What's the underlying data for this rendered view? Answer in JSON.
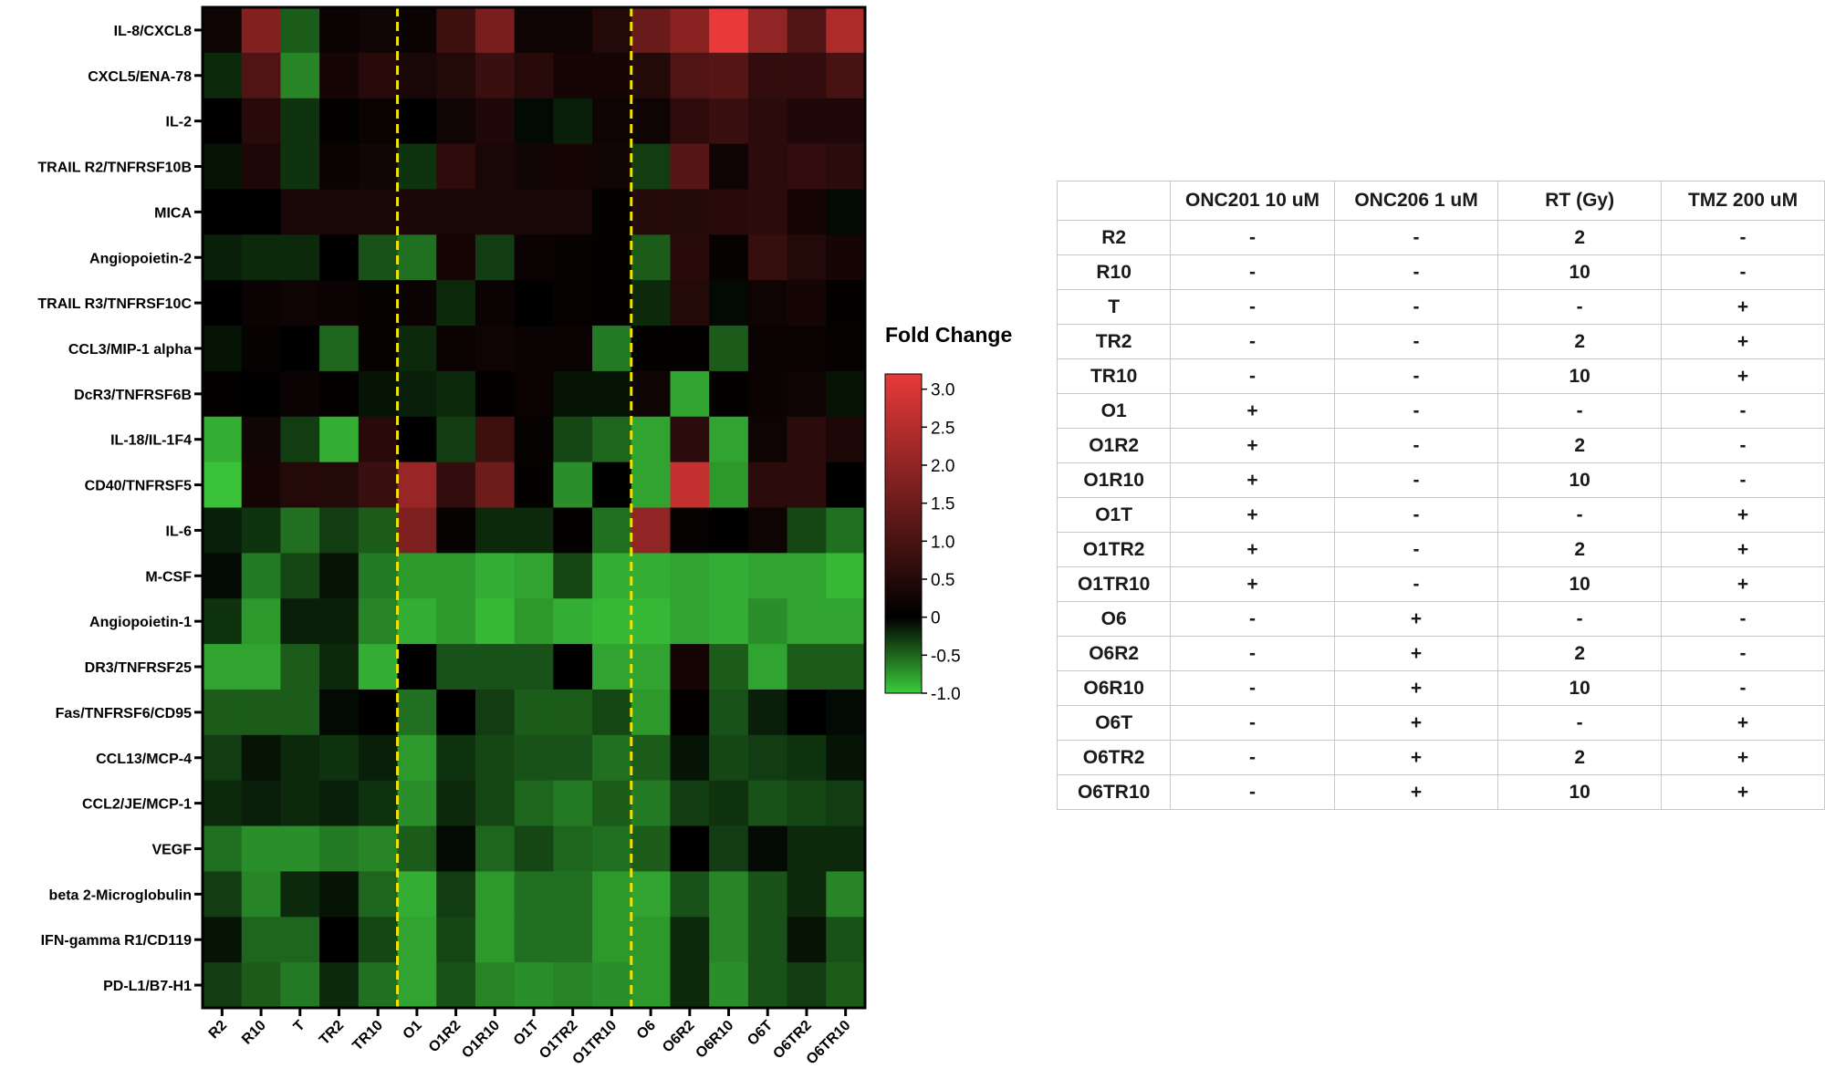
{
  "chart_data": {
    "type": "heatmap",
    "x_labels": [
      "R2",
      "R10",
      "T",
      "TR2",
      "TR10",
      "O1",
      "O1R2",
      "O1R10",
      "O1T",
      "O1TR2",
      "O1TR10",
      "O6",
      "O6R2",
      "O6R10",
      "O6T",
      "O6TR2",
      "O6TR10"
    ],
    "y_labels": [
      "IL-8/CXCL8",
      "CXCL5/ENA-78",
      "IL-2",
      "TRAIL R2/TNFRSF10B",
      "MICA",
      "Angiopoietin-2",
      "TRAIL R3/TNFRSF10C",
      "CCL3/MIP-1 alpha",
      "DcR3/TNFRSF6B",
      "IL-18/IL-1F4",
      "CD40/TNFRSF5",
      "IL-6",
      "M-CSF",
      "Angiopoietin-1",
      "DR3/TNFRSF25",
      "Fas/TNFRSF6/CD95",
      "CCL13/MCP-4",
      "CCL2/JE/MCP-1",
      "VEGF",
      "beta 2-Microglobulin",
      "IFN-gamma R1/CD119",
      "PD-L1/B7-H1"
    ],
    "values": [
      [
        0.2,
        1.8,
        -0.45,
        0.15,
        0.25,
        0.15,
        0.85,
        1.65,
        0.2,
        0.2,
        0.5,
        1.45,
        1.9,
        3.2,
        2.0,
        1.1,
        2.4
      ],
      [
        -0.2,
        1.1,
        -0.65,
        0.3,
        0.55,
        0.35,
        0.5,
        0.8,
        0.55,
        0.3,
        0.3,
        0.5,
        1.1,
        1.2,
        0.7,
        0.7,
        1.0
      ],
      [
        0.0,
        0.55,
        -0.25,
        0.05,
        0.15,
        0.0,
        0.25,
        0.45,
        -0.05,
        -0.15,
        0.2,
        0.2,
        0.65,
        0.8,
        0.6,
        0.45,
        0.45
      ],
      [
        -0.1,
        0.4,
        -0.25,
        0.15,
        0.25,
        -0.25,
        0.65,
        0.35,
        0.25,
        0.3,
        0.25,
        -0.3,
        1.2,
        0.2,
        0.6,
        0.7,
        0.6
      ],
      [
        0.0,
        0.0,
        0.35,
        0.35,
        0.35,
        0.35,
        0.35,
        0.35,
        0.35,
        0.35,
        0.05,
        0.5,
        0.5,
        0.55,
        0.6,
        0.3,
        -0.05
      ],
      [
        -0.15,
        -0.2,
        -0.2,
        0.0,
        -0.4,
        -0.55,
        0.3,
        -0.3,
        0.15,
        0.1,
        0.05,
        -0.45,
        0.55,
        0.1,
        0.75,
        0.5,
        0.3
      ],
      [
        0.0,
        0.15,
        0.2,
        0.15,
        0.1,
        0.15,
        -0.2,
        0.15,
        0.0,
        0.1,
        0.05,
        -0.2,
        0.5,
        -0.05,
        0.2,
        0.3,
        0.05
      ],
      [
        -0.1,
        0.1,
        0.0,
        -0.5,
        0.1,
        -0.2,
        0.15,
        0.2,
        0.15,
        0.15,
        -0.6,
        0.05,
        0.05,
        -0.45,
        0.15,
        0.15,
        0.1
      ],
      [
        0.05,
        0.0,
        0.15,
        0.05,
        -0.1,
        -0.15,
        -0.2,
        0.05,
        0.15,
        -0.1,
        -0.1,
        0.2,
        -0.8,
        0.05,
        0.15,
        0.2,
        -0.1
      ],
      [
        -0.85,
        0.25,
        -0.3,
        -0.85,
        0.55,
        0.0,
        -0.3,
        0.85,
        0.1,
        -0.35,
        -0.5,
        -0.8,
        0.6,
        -0.8,
        0.2,
        0.6,
        0.4
      ],
      [
        -0.95,
        0.3,
        0.5,
        0.5,
        0.8,
        2.1,
        0.7,
        1.5,
        0.05,
        -0.7,
        0.0,
        -0.8,
        2.7,
        -0.75,
        0.6,
        0.6,
        0.0
      ],
      [
        -0.15,
        -0.25,
        -0.55,
        -0.3,
        -0.45,
        1.75,
        0.1,
        -0.2,
        -0.2,
        0.05,
        -0.55,
        2.0,
        0.1,
        0.0,
        0.2,
        -0.35,
        -0.55
      ],
      [
        -0.05,
        -0.6,
        -0.35,
        -0.1,
        -0.6,
        -0.75,
        -0.75,
        -0.85,
        -0.8,
        -0.35,
        -0.85,
        -0.85,
        -0.8,
        -0.85,
        -0.8,
        -0.8,
        -0.9
      ],
      [
        -0.25,
        -0.75,
        -0.15,
        -0.15,
        -0.65,
        -0.85,
        -0.75,
        -0.9,
        -0.75,
        -0.85,
        -0.9,
        -0.9,
        -0.8,
        -0.85,
        -0.7,
        -0.8,
        -0.8
      ],
      [
        -0.8,
        -0.8,
        -0.45,
        -0.2,
        -0.85,
        0.0,
        -0.4,
        -0.4,
        -0.4,
        0.0,
        -0.8,
        -0.8,
        0.3,
        -0.45,
        -0.8,
        -0.45,
        -0.45
      ],
      [
        -0.45,
        -0.45,
        -0.45,
        -0.05,
        0.0,
        -0.55,
        0.0,
        -0.3,
        -0.45,
        -0.45,
        -0.35,
        -0.75,
        0.05,
        -0.4,
        -0.15,
        0.0,
        -0.05
      ],
      [
        -0.3,
        -0.1,
        -0.2,
        -0.25,
        -0.15,
        -0.75,
        -0.25,
        -0.35,
        -0.4,
        -0.4,
        -0.55,
        -0.45,
        -0.1,
        -0.35,
        -0.3,
        -0.25,
        -0.1
      ],
      [
        -0.2,
        -0.15,
        -0.2,
        -0.15,
        -0.25,
        -0.7,
        -0.2,
        -0.35,
        -0.5,
        -0.6,
        -0.45,
        -0.6,
        -0.3,
        -0.25,
        -0.4,
        -0.35,
        -0.3
      ],
      [
        -0.55,
        -0.7,
        -0.7,
        -0.6,
        -0.65,
        -0.45,
        -0.05,
        -0.5,
        -0.35,
        -0.5,
        -0.55,
        -0.45,
        0.0,
        -0.3,
        -0.05,
        -0.2,
        -0.2
      ],
      [
        -0.3,
        -0.65,
        -0.2,
        -0.1,
        -0.5,
        -0.85,
        -0.3,
        -0.75,
        -0.55,
        -0.55,
        -0.75,
        -0.8,
        -0.4,
        -0.65,
        -0.4,
        -0.2,
        -0.65
      ],
      [
        -0.1,
        -0.5,
        -0.5,
        0.0,
        -0.35,
        -0.8,
        -0.35,
        -0.75,
        -0.55,
        -0.55,
        -0.75,
        -0.75,
        -0.2,
        -0.65,
        -0.4,
        -0.1,
        -0.4
      ],
      [
        -0.3,
        -0.45,
        -0.6,
        -0.2,
        -0.55,
        -0.8,
        -0.4,
        -0.65,
        -0.7,
        -0.65,
        -0.7,
        -0.75,
        -0.2,
        -0.7,
        -0.4,
        -0.3,
        -0.45
      ]
    ],
    "colorbar": {
      "title": "Fold Change",
      "range": [
        -1.0,
        3.2
      ],
      "ticks": [
        "3.0",
        "2.5",
        "2.0",
        "1.5",
        "1.0",
        "0.5",
        "0",
        "-0.5",
        "-1.0"
      ],
      "tick_values": [
        3.0,
        2.5,
        2.0,
        1.5,
        1.0,
        0.5,
        0,
        -0.5,
        -1.0
      ],
      "low_color": "#3ccc3c",
      "mid_color": "#000000",
      "high_color": "#e83a3a"
    },
    "separator_after_columns": [
      5,
      11
    ],
    "separator_color": "#f2e200"
  },
  "table": {
    "headers": [
      "",
      "ONC201 10 uM",
      "ONC206 1 uM",
      "RT (Gy)",
      "TMZ 200 uM"
    ],
    "rows": [
      [
        "R2",
        "-",
        "-",
        "2",
        "-"
      ],
      [
        "R10",
        "-",
        "-",
        "10",
        "-"
      ],
      [
        "T",
        "-",
        "-",
        "-",
        "+"
      ],
      [
        "TR2",
        "-",
        "-",
        "2",
        "+"
      ],
      [
        "TR10",
        "-",
        "-",
        "10",
        "+"
      ],
      [
        "O1",
        "+",
        "-",
        "-",
        "-"
      ],
      [
        "O1R2",
        "+",
        "-",
        "2",
        "-"
      ],
      [
        "O1R10",
        "+",
        "-",
        "10",
        "-"
      ],
      [
        "O1T",
        "+",
        "-",
        "-",
        "+"
      ],
      [
        "O1TR2",
        "+",
        "-",
        "2",
        "+"
      ],
      [
        "O1TR10",
        "+",
        "-",
        "10",
        "+"
      ],
      [
        "O6",
        "-",
        "+",
        "-",
        "-"
      ],
      [
        "O6R2",
        "-",
        "+",
        "2",
        "-"
      ],
      [
        "O6R10",
        "-",
        "+",
        "10",
        "-"
      ],
      [
        "O6T",
        "-",
        "+",
        "-",
        "+"
      ],
      [
        "O6TR2",
        "-",
        "+",
        "2",
        "+"
      ],
      [
        "O6TR10",
        "-",
        "+",
        "10",
        "+"
      ]
    ]
  }
}
